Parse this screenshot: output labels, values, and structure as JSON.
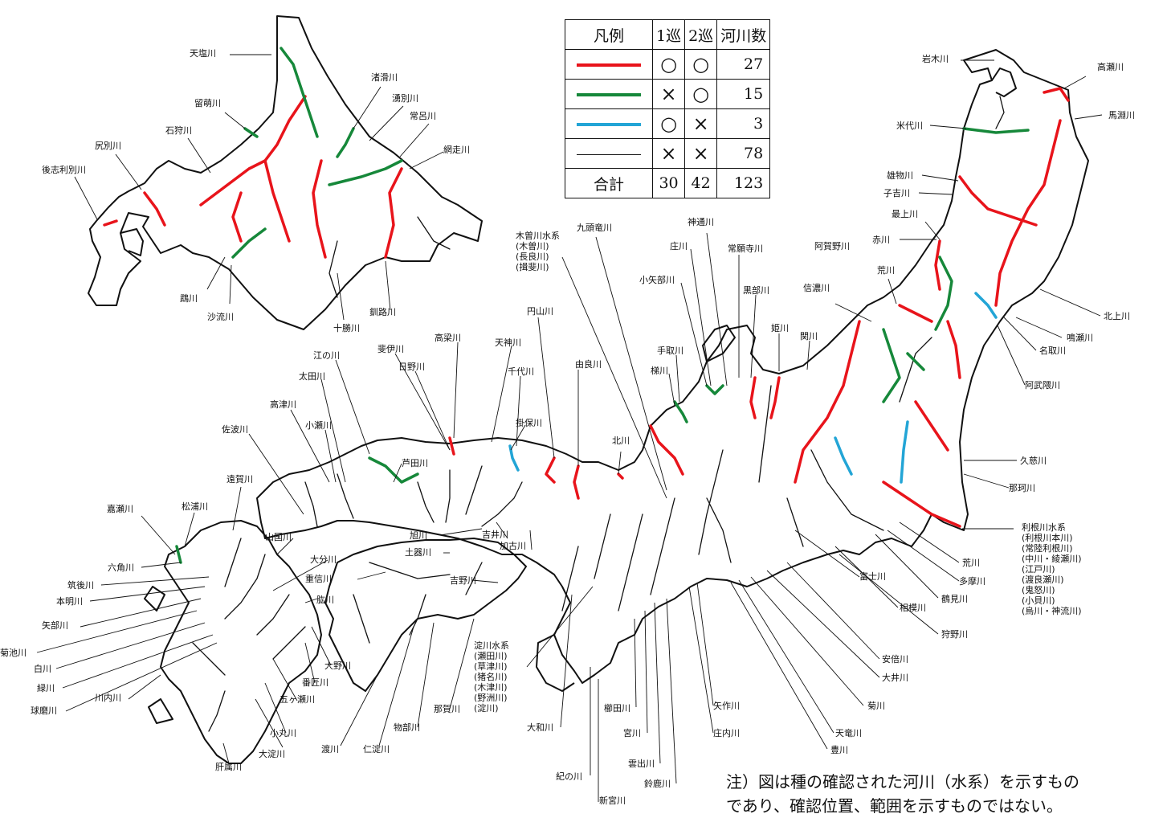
{
  "legend": {
    "header": [
      "凡例",
      "1巡",
      "2巡",
      "河川数"
    ],
    "rows": [
      {
        "color": "#e8141b",
        "r1": "○",
        "r2": "○",
        "count": "27"
      },
      {
        "color": "#16883a",
        "r1": "×",
        "r2": "○",
        "count": "15"
      },
      {
        "color": "#23a5d6",
        "r1": "○",
        "r2": "×",
        "count": "3"
      },
      {
        "color": "#111111",
        "r1": "×",
        "r2": "×",
        "count": "78"
      }
    ],
    "total": {
      "label": "合計",
      "r1": "30",
      "r2": "42",
      "count": "123"
    }
  },
  "note": {
    "line1": "注）図は種の確認された河川（水系）を示すもの",
    "line2": "であり、確認位置、範囲を示すものではない。"
  },
  "labels": {
    "teshio": "天塩川",
    "rumoi": "留萌川",
    "ishikari": "石狩川",
    "shiribetsu": "尻別川",
    "shiribeshitoshibetsu": "後志利別川",
    "shokotsu": "渚滑川",
    "yubetsu": "湧別川",
    "tokoro": "常呂川",
    "abashiri": "網走川",
    "mukawa": "鵡川",
    "saru": "沙流川",
    "tokachi": "十勝川",
    "kushiro": "釧路川",
    "iwaki": "岩木川",
    "takase": "高瀬川",
    "mabechi": "馬淵川",
    "yoneshiro": "米代川",
    "omono": "雄物川",
    "koyoshi": "子吉川",
    "mogami": "最上川",
    "aka": "赤川",
    "agano": "阿賀野川",
    "shinano": "信濃川",
    "ara_n": "荒川",
    "kitakami": "北上川",
    "naruse": "鳴瀬川",
    "natori": "名取川",
    "abukuma": "阿武隈川",
    "kuji": "久慈川",
    "naka": "那珂川",
    "tone": "利根川水系",
    "tone_sub": [
      "(利根川本川)",
      "(常陸利根川)",
      "(中川・綾瀬川)",
      "(江戸川)",
      "(渡良瀬川)",
      "(鬼怒川)",
      "(小貝川)",
      "(烏川・神流川)"
    ],
    "ara_s": "荒川",
    "tama": "多摩川",
    "tsurumi": "鶴見川",
    "sagami": "相模川",
    "kano": "狩野川",
    "fuji": "富士川",
    "abe": "安倍川",
    "oi": "大井川",
    "kiku": "菊川",
    "tenryu": "天竜川",
    "toyo": "豊川",
    "yahagi": "矢作川",
    "shonai": "庄内川",
    "suzuka": "鈴鹿川",
    "kumozu": "雲出川",
    "miya": "宮川",
    "kushida": "櫛田川",
    "shingu": "新宮川",
    "kinokawa": "紀の川",
    "yamato": "大和川",
    "yodo": "淀川水系",
    "yodo_sub": [
      "(瀬田川)",
      "(草津川)",
      "(猪名川)",
      "(木津川)",
      "(野洲川)",
      "(淀川)"
    ],
    "kiso": "木曽川水系",
    "kiso_sub": [
      "(木曽川)",
      "(長良川)",
      "(揖斐川)"
    ],
    "kuzuryu": "九頭竜川",
    "jintsu": "神通川",
    "sho": "庄川",
    "joganji": "常願寺川",
    "oyabe": "小矢部川",
    "kurobe": "黒部川",
    "hime": "姫川",
    "seki": "関川",
    "tedori": "手取川",
    "kakehashi": "梯川",
    "kita": "北川",
    "yura": "由良川",
    "maruyama": "円山川",
    "tenjin": "天神川",
    "sendai_t": "千代川",
    "hino": "日野川",
    "hii": "斐伊川",
    "takahashi": "高梁川",
    "gonokawa": "江の川",
    "ota": "太田川",
    "takatsu": "高津川",
    "oze": "小瀬川",
    "saba": "佐波川",
    "onga": "遠賀川",
    "matsuura": "松浦川",
    "kase": "嘉瀬川",
    "rokkaku": "六角川",
    "chikugo": "筑後川",
    "honmyo": "本明川",
    "yabe": "矢部川",
    "kikuchi": "菊池川",
    "shira": "白川",
    "midori": "緑川",
    "kuma": "球磨川",
    "sendai_k": "川内川",
    "kimotsuki": "肝属川",
    "yamakuni": "山国川",
    "oita": "大分川",
    "ono": "大野川",
    "banjo": "番匠川",
    "gokase": "五ヶ瀬川",
    "omaru": "小丸川",
    "oyodo": "大淀川",
    "shigenobu": "重信川",
    "hiji": "肱川",
    "watari": "渡川",
    "niyodo": "仁淀川",
    "monobe": "物部川",
    "naka_s": "那賀川",
    "yoshino": "吉野川",
    "dokiasahi": "旭川",
    "doki": "土器川",
    "yoshii": "吉井川",
    "kako": "加古川",
    "ashida": "芦田川",
    "kako_alt": "掛保川"
  }
}
